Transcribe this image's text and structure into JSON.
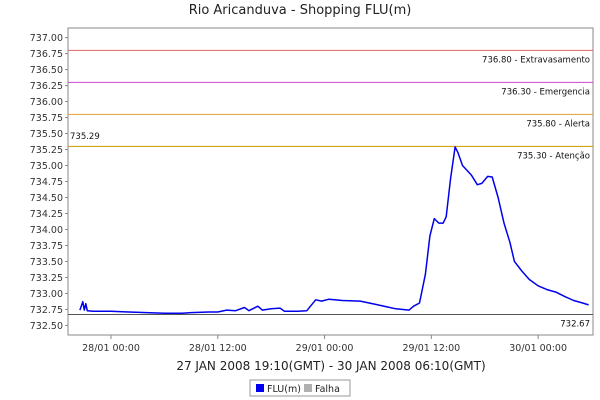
{
  "chart_data": {
    "type": "line",
    "title": "Rio Aricanduva - Shopping FLU(m)",
    "subtitle": "27 JAN 2008 19:10(GMT) - 30 JAN 2008 06:10(GMT)",
    "ylim": [
      732.35,
      737.15
    ],
    "yticks": [
      "737.00",
      "736.75",
      "736.50",
      "736.25",
      "736.00",
      "735.75",
      "735.50",
      "735.25",
      "735.00",
      "734.75",
      "734.50",
      "734.25",
      "734.00",
      "733.75",
      "733.50",
      "733.25",
      "733.00",
      "732.75",
      "732.50"
    ],
    "x_start": "2008-01-27T19:10",
    "x_end": "2008-01-30T06:10",
    "x_ticks": [
      {
        "t": "2008-01-28T00:00",
        "label": "28/01 00:00"
      },
      {
        "t": "2008-01-28T12:00",
        "label": "28/01 12:00"
      },
      {
        "t": "2008-01-29T00:00",
        "label": "29/01 00:00"
      },
      {
        "t": "2008-01-29T12:00",
        "label": "29/01 12:00"
      },
      {
        "t": "2008-01-30T00:00",
        "label": "30/01 00:00"
      }
    ],
    "thresholds": [
      {
        "value": 736.8,
        "label": "736.80 - Extravasamento",
        "color": "#e06666"
      },
      {
        "value": 736.3,
        "label": "736.30 - Emergencia",
        "color": "#cc44cc"
      },
      {
        "value": 735.8,
        "label": "735.80 - Alerta",
        "color": "#e0a030"
      },
      {
        "value": 735.3,
        "label": "735.30 - Atenção",
        "color": "#c89a00"
      }
    ],
    "max_value": {
      "value": 735.29,
      "label": "735.29"
    },
    "min_value": {
      "value": 732.67,
      "label": "732.67"
    },
    "series": [
      {
        "name": "FLU(m)",
        "color": "#0000ee",
        "points": [
          [
            "2008-01-27T20:30",
            732.74
          ],
          [
            "2008-01-27T20:50",
            732.87
          ],
          [
            "2008-01-27T21:00",
            732.74
          ],
          [
            "2008-01-27T21:10",
            732.84
          ],
          [
            "2008-01-27T21:20",
            732.73
          ],
          [
            "2008-01-27T22:00",
            732.72
          ],
          [
            "2008-01-28T00:00",
            732.72
          ],
          [
            "2008-01-28T02:00",
            732.71
          ],
          [
            "2008-01-28T04:00",
            732.7
          ],
          [
            "2008-01-28T06:00",
            732.69
          ],
          [
            "2008-01-28T08:00",
            732.69
          ],
          [
            "2008-01-28T09:00",
            732.7
          ],
          [
            "2008-01-28T11:00",
            732.71
          ],
          [
            "2008-01-28T12:00",
            732.71
          ],
          [
            "2008-01-28T13:00",
            732.74
          ],
          [
            "2008-01-28T14:00",
            732.73
          ],
          [
            "2008-01-28T15:00",
            732.78
          ],
          [
            "2008-01-28T15:30",
            732.73
          ],
          [
            "2008-01-28T16:30",
            732.8
          ],
          [
            "2008-01-28T17:00",
            732.74
          ],
          [
            "2008-01-28T18:00",
            732.76
          ],
          [
            "2008-01-28T19:00",
            732.77
          ],
          [
            "2008-01-28T19:30",
            732.72
          ],
          [
            "2008-01-28T21:00",
            732.72
          ],
          [
            "2008-01-28T22:00",
            732.73
          ],
          [
            "2008-01-28T23:00",
            732.9
          ],
          [
            "2008-01-28T23:40",
            732.88
          ],
          [
            "2008-01-29T00:30",
            732.91
          ],
          [
            "2008-01-29T02:00",
            732.89
          ],
          [
            "2008-01-29T04:00",
            732.88
          ],
          [
            "2008-01-29T06:00",
            732.82
          ],
          [
            "2008-01-29T08:00",
            732.76
          ],
          [
            "2008-01-29T09:30",
            732.74
          ],
          [
            "2008-01-29T10:00",
            732.8
          ],
          [
            "2008-01-29T10:40",
            732.85
          ],
          [
            "2008-01-29T11:20",
            733.3
          ],
          [
            "2008-01-29T11:50",
            733.9
          ],
          [
            "2008-01-29T12:20",
            734.17
          ],
          [
            "2008-01-29T12:50",
            734.1
          ],
          [
            "2008-01-29T13:20",
            734.1
          ],
          [
            "2008-01-29T13:40",
            734.2
          ],
          [
            "2008-01-29T14:10",
            734.8
          ],
          [
            "2008-01-29T14:40",
            735.29
          ],
          [
            "2008-01-29T15:00",
            735.2
          ],
          [
            "2008-01-29T15:30",
            735.0
          ],
          [
            "2008-01-29T16:30",
            734.85
          ],
          [
            "2008-01-29T17:10",
            734.7
          ],
          [
            "2008-01-29T17:40",
            734.72
          ],
          [
            "2008-01-29T18:20",
            734.83
          ],
          [
            "2008-01-29T18:50",
            734.82
          ],
          [
            "2008-01-29T19:30",
            734.5
          ],
          [
            "2008-01-29T20:10",
            734.1
          ],
          [
            "2008-01-29T20:50",
            733.8
          ],
          [
            "2008-01-29T21:20",
            733.5
          ],
          [
            "2008-01-29T22:10",
            733.35
          ],
          [
            "2008-01-29T23:00",
            733.22
          ],
          [
            "2008-01-30T00:00",
            733.12
          ],
          [
            "2008-01-30T01:00",
            733.06
          ],
          [
            "2008-01-30T02:00",
            733.02
          ],
          [
            "2008-01-30T03:00",
            732.95
          ],
          [
            "2008-01-30T04:00",
            732.89
          ],
          [
            "2008-01-30T05:00",
            732.85
          ],
          [
            "2008-01-30T05:40",
            732.82
          ]
        ]
      }
    ],
    "legend": [
      {
        "label": "FLU(m)",
        "color": "#0000ee"
      },
      {
        "label": "Falha",
        "color": "#b0b0b0"
      }
    ],
    "legend_position": "bottom-center",
    "grid": false
  }
}
